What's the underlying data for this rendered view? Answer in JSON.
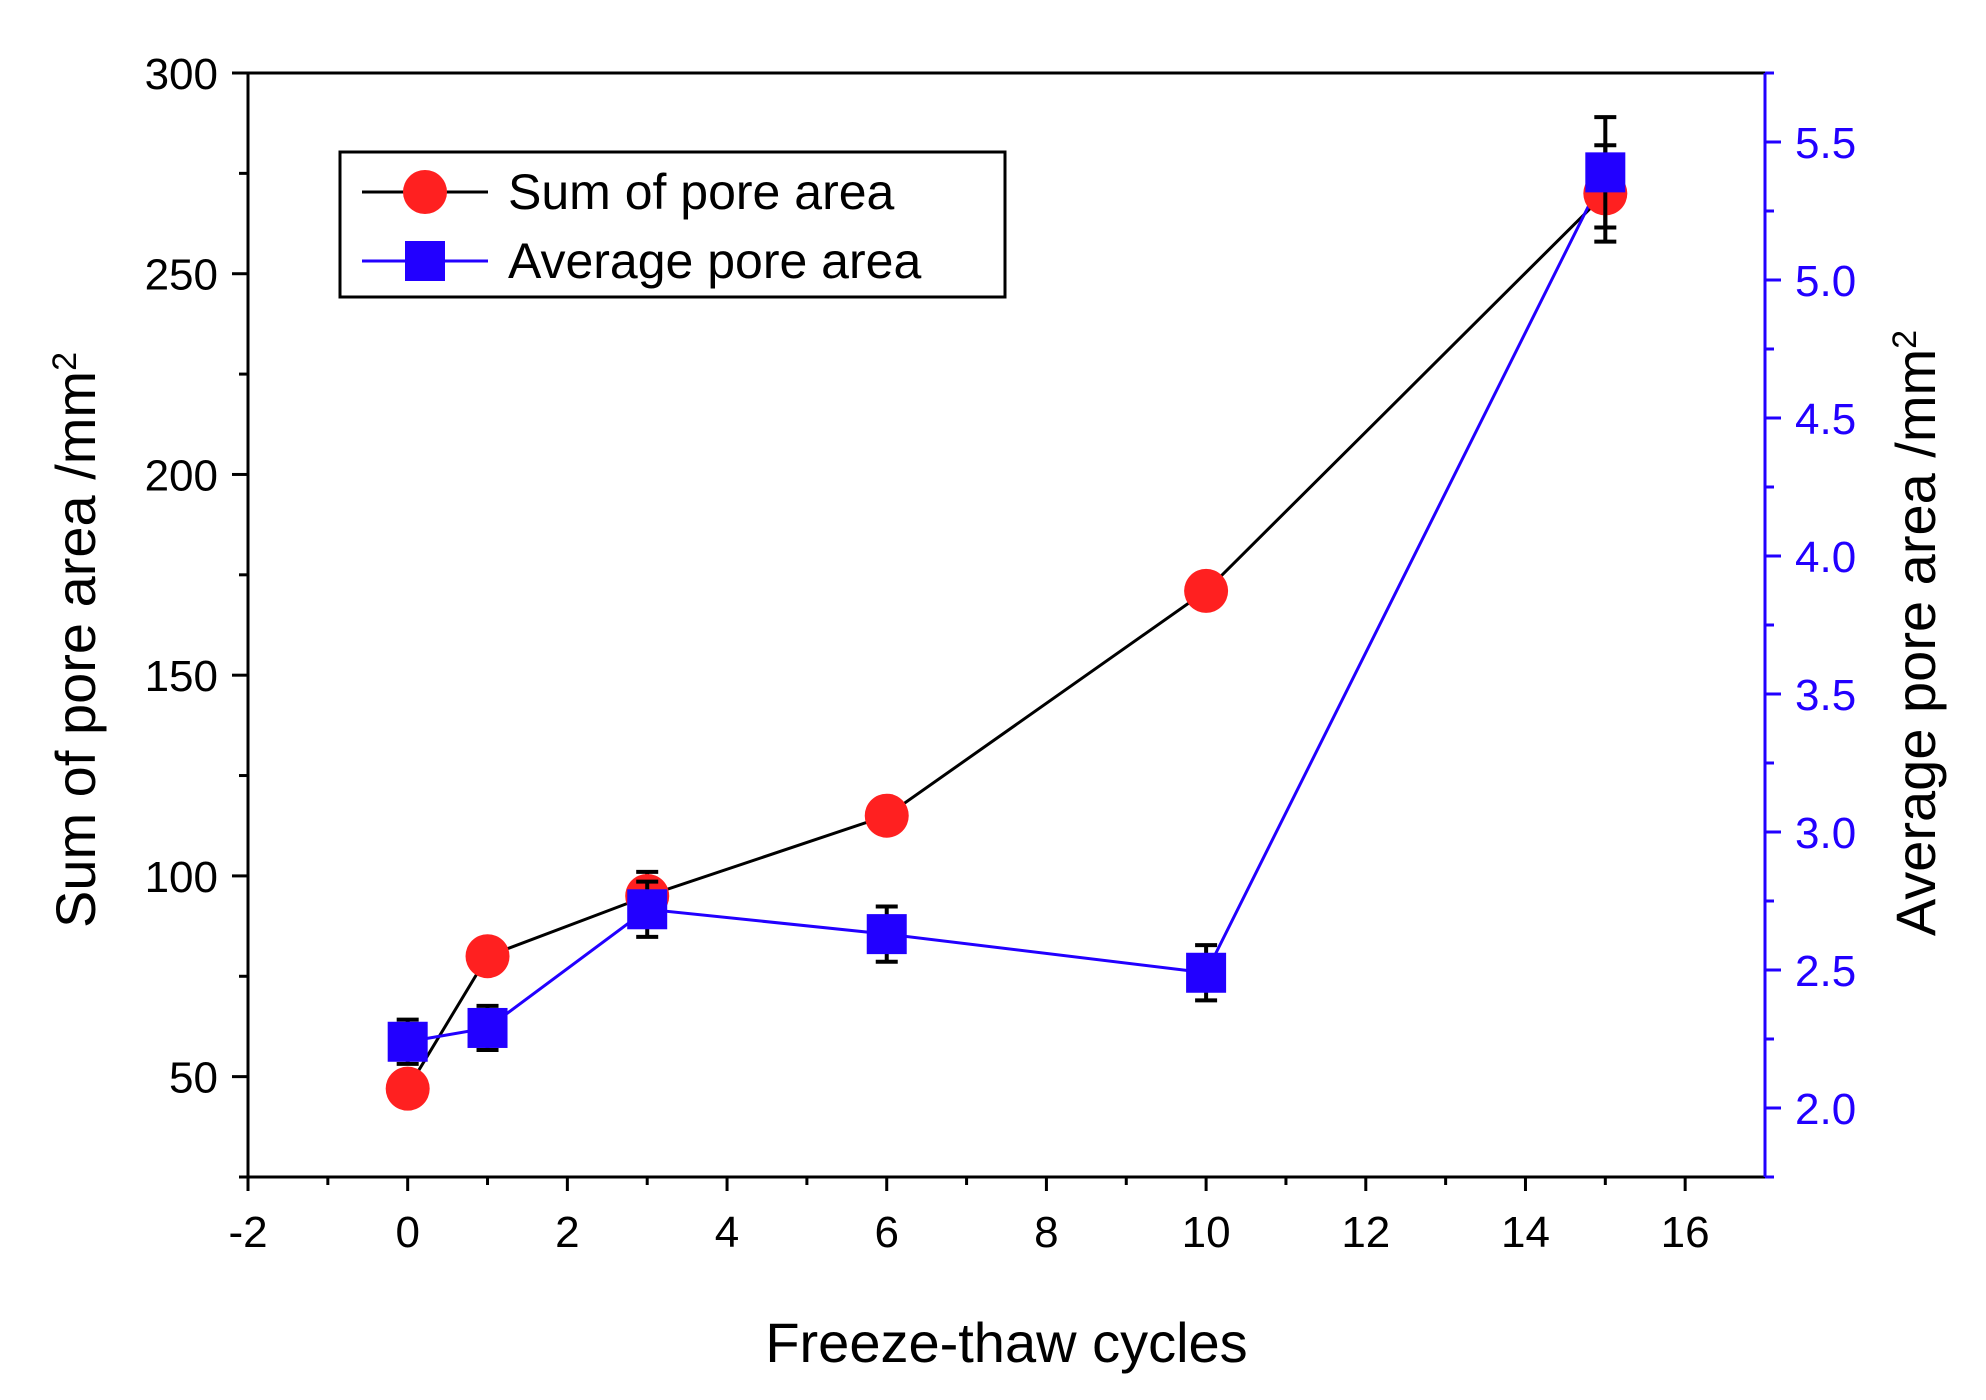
{
  "chart_data": {
    "type": "line",
    "xlabel": "Freeze-thaw cycles",
    "ylabel": "Sum of pore area /mm",
    "ylabel_sup": "2",
    "y2label": "Average pore area /mm",
    "y2label_sup": "2",
    "xlim": [
      -2,
      17
    ],
    "ylim": [
      25,
      300
    ],
    "y2lim": [
      1.75,
      5.75
    ],
    "xticks": [
      -2,
      0,
      2,
      4,
      6,
      8,
      10,
      12,
      14,
      16
    ],
    "xtick_labels": [
      "-2",
      "0",
      "2",
      "4",
      "6",
      "8",
      "10",
      "12",
      "14",
      "16"
    ],
    "yticks": [
      50,
      100,
      150,
      200,
      250,
      300
    ],
    "ytick_labels": [
      "50",
      "100",
      "150",
      "200",
      "250",
      "300"
    ],
    "y2ticks": [
      2.0,
      2.5,
      3.0,
      3.5,
      4.0,
      4.5,
      5.0,
      5.5
    ],
    "y2tick_labels": [
      "2.0",
      "2.5",
      "3.0",
      "3.5",
      "4.0",
      "4.5",
      "5.0",
      "5.5"
    ],
    "legend_position": "top-left",
    "series": [
      {
        "name": "Sum of pore area",
        "axis": "left",
        "marker": "circle",
        "marker_color": "#ff2020",
        "line_color": "#000000",
        "x": [
          0,
          1,
          3,
          6,
          10,
          15
        ],
        "y": [
          47,
          80,
          95,
          115,
          171,
          270
        ],
        "err": [
          null,
          null,
          6,
          null,
          null,
          12
        ]
      },
      {
        "name": "Average pore area",
        "axis": "right",
        "marker": "square",
        "marker_color": "#2200ff",
        "line_color": "#2200ff",
        "x": [
          0,
          1,
          3,
          6,
          10,
          15
        ],
        "y": [
          2.24,
          2.29,
          2.72,
          2.63,
          2.49,
          5.39
        ],
        "err": [
          0.08,
          0.08,
          0.1,
          0.1,
          0.1,
          0.2
        ]
      }
    ]
  }
}
